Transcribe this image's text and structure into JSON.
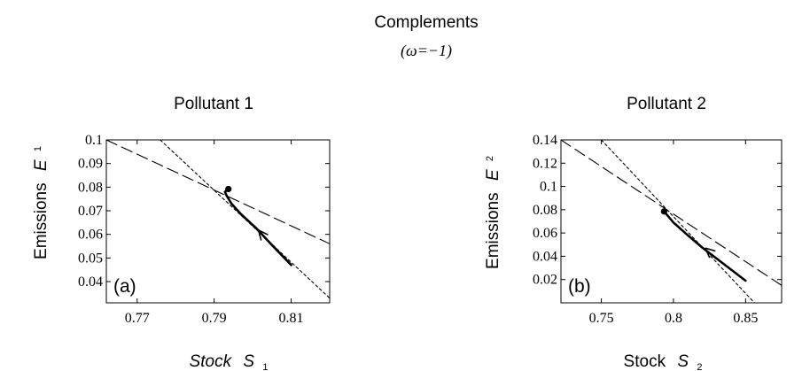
{
  "figure": {
    "title": "Complements",
    "subtitle": "(ω=−1)"
  },
  "chart_data": [
    {
      "type": "line",
      "title": "Pollutant 1",
      "xlabel_italic": "Stock",
      "xlabel_symbol": "S",
      "xlabel_sub": "1",
      "ylabel": "Emissions",
      "ylabel_symbol": "E",
      "ylabel_sub": "1",
      "panel_label": "(a)",
      "xlim": [
        0.762,
        0.82
      ],
      "ylim": [
        0.031,
        0.1
      ],
      "xticks": [
        0.77,
        0.79,
        0.81
      ],
      "xtick_labels": [
        "0.77",
        "0.79",
        "0.81"
      ],
      "yticks": [
        0.04,
        0.05,
        0.06,
        0.07,
        0.08,
        0.09,
        0.1
      ],
      "ytick_labels": [
        "0.04",
        "0.05",
        "0.06",
        "0.07",
        "0.08",
        "0.09",
        "0.1"
      ],
      "grid": false,
      "series": [
        {
          "style": "long-dash",
          "x": [
            0.762,
            0.82
          ],
          "y": [
            0.1,
            0.056
          ]
        },
        {
          "style": "short-dash",
          "x": [
            0.776,
            0.82
          ],
          "y": [
            0.1,
            0.033
          ]
        },
        {
          "style": "solid-thick",
          "x": [
            0.81,
            0.805,
            0.801,
            0.797,
            0.7945,
            0.7932,
            0.7928,
            0.7937
          ],
          "y": [
            0.047,
            0.0555,
            0.0625,
            0.0685,
            0.073,
            0.0765,
            0.078,
            0.0792
          ]
        }
      ],
      "steady_state": {
        "x": 0.7937,
        "y": 0.0792
      },
      "arrow": {
        "x": 0.8015,
        "y": 0.0618
      }
    },
    {
      "type": "line",
      "title": "Pollutant 2",
      "xlabel_italic": "",
      "xlabel_upright": "Stock",
      "xlabel_symbol": "S",
      "xlabel_sub": "2",
      "ylabel": "Emissions",
      "ylabel_symbol": "E",
      "ylabel_sub": "2",
      "panel_label": "(b)",
      "xlim": [
        0.722,
        0.875
      ],
      "ylim": [
        0.0,
        0.14
      ],
      "xticks": [
        0.75,
        0.8,
        0.85
      ],
      "xtick_labels": [
        "0.75",
        "0.8",
        "0.85"
      ],
      "yticks": [
        0.02,
        0.04,
        0.06,
        0.08,
        0.1,
        0.12,
        0.14
      ],
      "ytick_labels": [
        "0.02",
        "0.04",
        "0.06",
        "0.08",
        "0.1",
        "0.12",
        "0.14"
      ],
      "grid": false,
      "series": [
        {
          "style": "long-dash",
          "x": [
            0.722,
            0.875
          ],
          "y": [
            0.14,
            0.015
          ]
        },
        {
          "style": "short-dash",
          "x": [
            0.75,
            0.86
          ],
          "y": [
            0.14,
            -0.005
          ]
        },
        {
          "style": "solid-thick",
          "x": [
            0.85,
            0.84,
            0.83,
            0.82,
            0.81,
            0.8,
            0.7935
          ],
          "y": [
            0.019,
            0.0285,
            0.038,
            0.0475,
            0.058,
            0.069,
            0.0785
          ]
        }
      ],
      "steady_state": {
        "x": 0.7935,
        "y": 0.0785
      },
      "arrow": {
        "x": 0.822,
        "y": 0.047
      }
    }
  ]
}
